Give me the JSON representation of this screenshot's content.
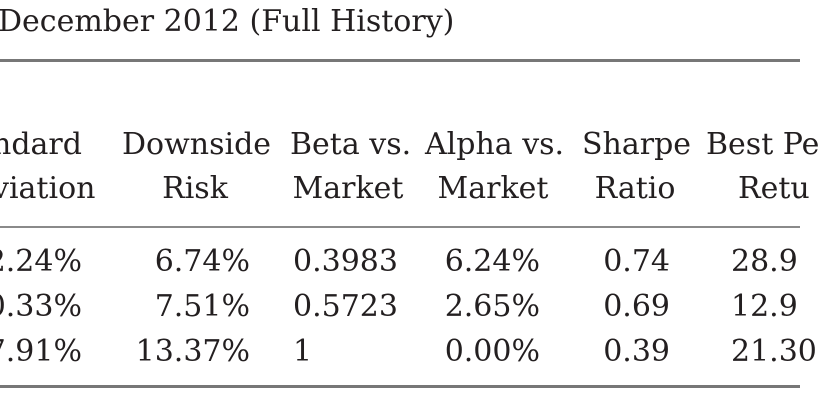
{
  "title": "December 2012 (Full History)",
  "table": {
    "headers": [
      {
        "line1": "ndard",
        "line2": "viation"
      },
      {
        "line1": "Downside",
        "line2": "Risk"
      },
      {
        "line1": "Beta vs.",
        "line2": "Market"
      },
      {
        "line1": "Alpha vs.",
        "line2": "Market"
      },
      {
        "line1": "Sharpe",
        "line2": "Ratio"
      },
      {
        "line1": "Best Pe",
        "line2": "Retu"
      }
    ],
    "rows": [
      [
        "2.24%",
        "6.74%",
        "0.3983",
        "6.24%",
        "0.74",
        "28.9"
      ],
      [
        "0.33%",
        "7.51%",
        "0.5723",
        "2.65%",
        "0.69",
        "12.9"
      ],
      [
        "7.91%",
        "13.37%",
        "1",
        "0.00%",
        "0.39",
        "21.30"
      ]
    ]
  }
}
